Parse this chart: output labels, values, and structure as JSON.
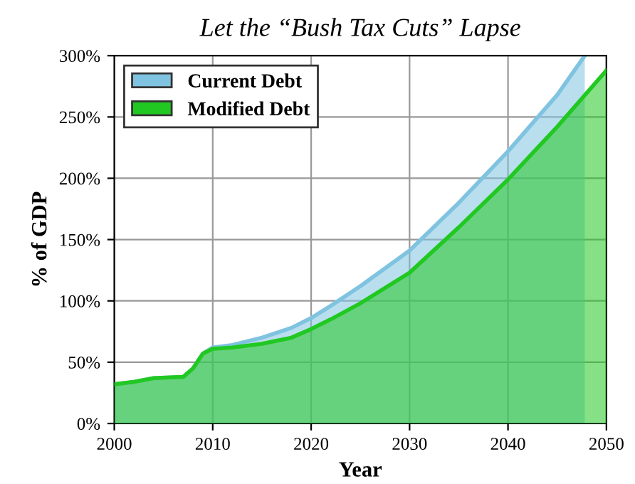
{
  "chart_data": {
    "type": "area",
    "title": "Let the “Bush Tax Cuts” Lapse",
    "xlabel": "Year",
    "ylabel": "% of GDP",
    "series": [
      {
        "name": "Current Debt",
        "color": "#7fc3e0",
        "x": [
          2000,
          2002,
          2004,
          2007,
          2008,
          2009,
          2010,
          2012,
          2015,
          2018,
          2020,
          2022,
          2025,
          2030,
          2035,
          2040,
          2045,
          2047.8
        ],
        "values": [
          32,
          34,
          37,
          38,
          45,
          57,
          62,
          64,
          70,
          78,
          86,
          96,
          112,
          141,
          180,
          222,
          268,
          300
        ]
      },
      {
        "name": "Modified Debt",
        "color": "#22c822",
        "x": [
          2000,
          2002,
          2004,
          2007,
          2008,
          2009,
          2010,
          2012,
          2015,
          2018,
          2020,
          2022,
          2025,
          2030,
          2035,
          2040,
          2045,
          2050
        ],
        "values": [
          32,
          34,
          37,
          38,
          45,
          57,
          61,
          62,
          65,
          70,
          77,
          85,
          98,
          123,
          160,
          199,
          242,
          288
        ]
      }
    ],
    "xlim": [
      2000,
      2050
    ],
    "ylim": [
      0,
      300
    ],
    "xticks": [
      2000,
      2010,
      2020,
      2030,
      2040,
      2050
    ],
    "yticks": [
      {
        "value": 0,
        "label": "0%"
      },
      {
        "value": 50,
        "label": "50%"
      },
      {
        "value": 100,
        "label": "100%"
      },
      {
        "value": 150,
        "label": "150%"
      },
      {
        "value": 200,
        "label": "200%"
      },
      {
        "value": 250,
        "label": "250%"
      },
      {
        "value": 300,
        "label": "300%"
      }
    ],
    "grid": true,
    "legend": "top left"
  }
}
